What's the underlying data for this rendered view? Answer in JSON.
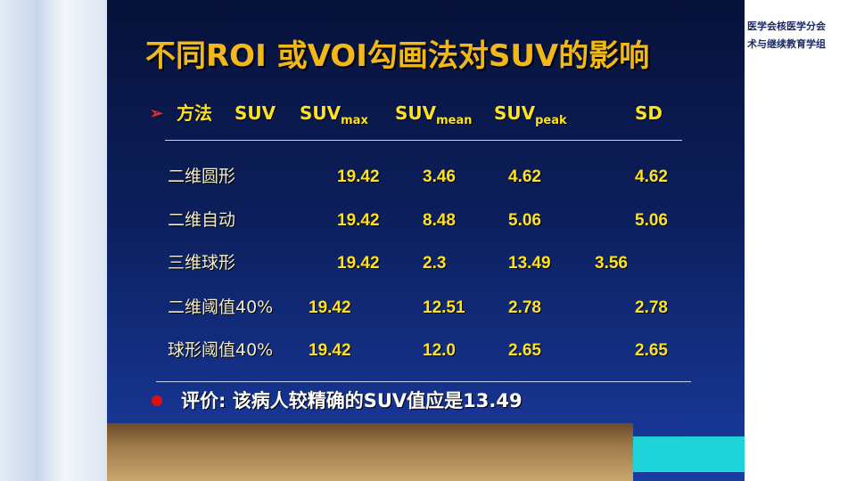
{
  "header": {
    "org_line1": "医学会核医学分会",
    "org_line2": "术与继续教育学组",
    "title": "不同ROI 或VOI勾画法对SUV的影响"
  },
  "table": {
    "header": [
      "方法",
      "SUV",
      {
        "base": "SUV",
        "sub": "max"
      },
      {
        "base": "SUV",
        "sub": "mean"
      },
      {
        "base": "SUV",
        "sub": "peak"
      },
      "SD"
    ],
    "rows": [
      [
        "二维圆形",
        "19.42",
        "3.46",
        "4.62",
        "4.62"
      ],
      [
        "二维自动",
        "19.42",
        "8.48",
        "5.06",
        "5.06"
      ],
      [
        "三维球形",
        "19.42",
        "2.3",
        "13.49",
        "3.56"
      ],
      [
        "二维阈值40%",
        "19.42",
        "12.51",
        "2.78",
        "2.78"
      ],
      [
        "球形阈值40%",
        "19.42",
        "12.0",
        "2.65",
        "2.65"
      ]
    ]
  },
  "evaluation": "评价: 该病人较精确的SUV值应是13.49"
}
